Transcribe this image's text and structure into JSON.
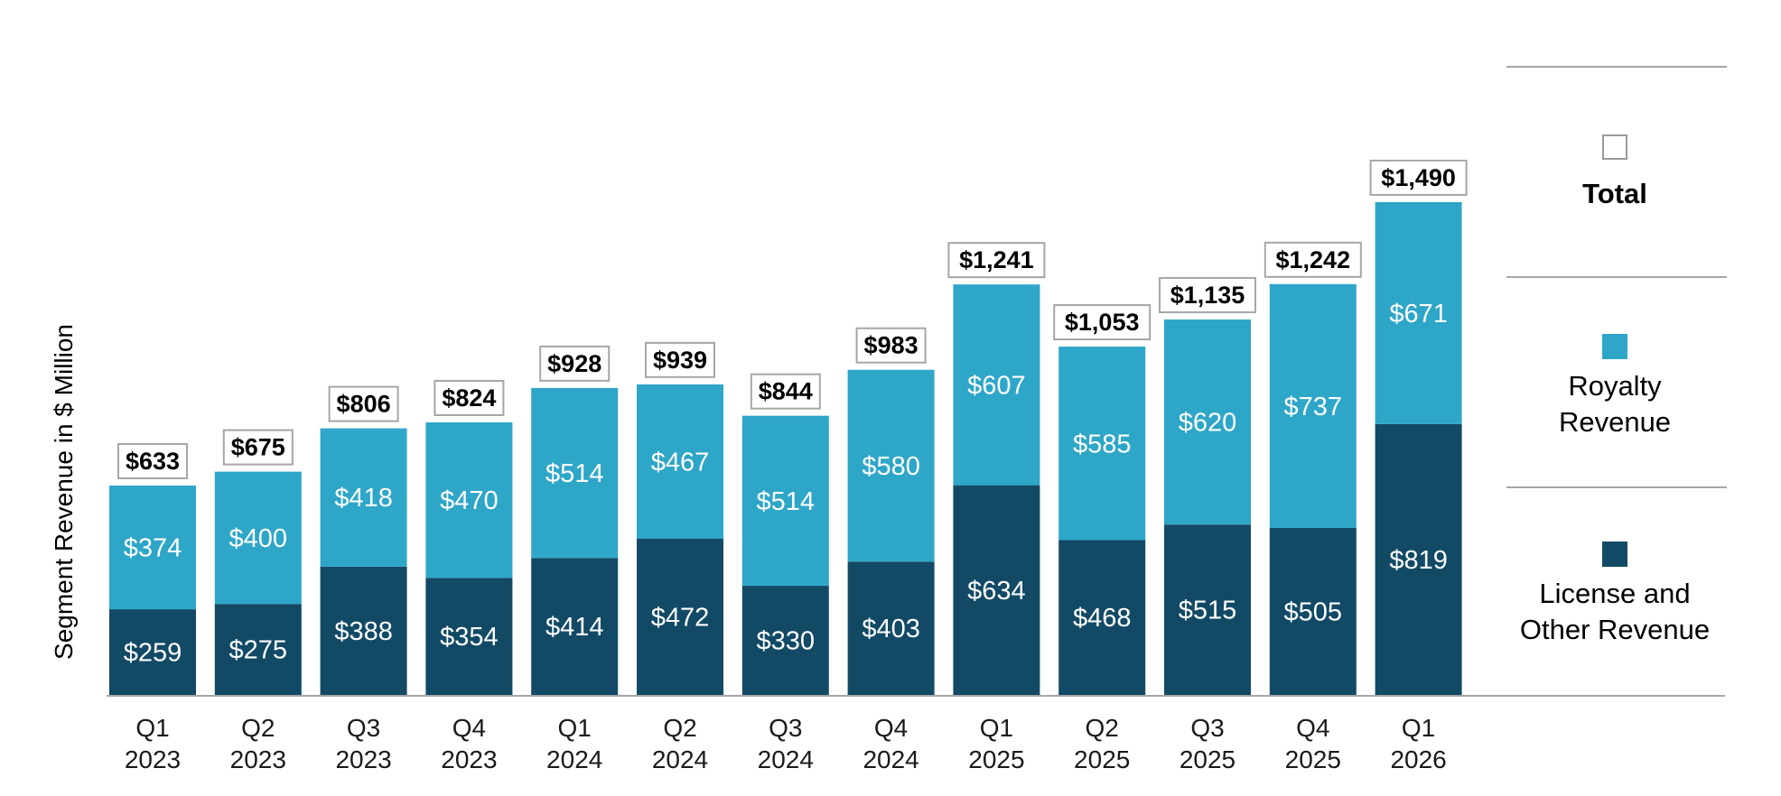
{
  "chart_data": {
    "type": "bar",
    "stacked": true,
    "ylabel": "Segment Revenue in $ Million",
    "categories": [
      [
        "Q1",
        "2023"
      ],
      [
        "Q2",
        "2023"
      ],
      [
        "Q3",
        "2023"
      ],
      [
        "Q4",
        "2023"
      ],
      [
        "Q1",
        "2024"
      ],
      [
        "Q2",
        "2024"
      ],
      [
        "Q3",
        "2024"
      ],
      [
        "Q4",
        "2024"
      ],
      [
        "Q1",
        "2025"
      ],
      [
        "Q2",
        "2025"
      ],
      [
        "Q3",
        "2025"
      ],
      [
        "Q4",
        "2025"
      ],
      [
        "Q1",
        "2026"
      ]
    ],
    "series": [
      {
        "name": "License and Other Revenue",
        "color": "#124a66",
        "values": [
          259,
          275,
          388,
          354,
          414,
          472,
          330,
          403,
          634,
          468,
          515,
          505,
          819
        ],
        "labels": [
          "$259",
          "$275",
          "$388",
          "$354",
          "$414",
          "$472",
          "$330",
          "$403",
          "$634",
          "$468",
          "$515",
          "$505",
          "$819"
        ]
      },
      {
        "name": "Royalty Revenue",
        "color": "#2ea6c8",
        "values": [
          374,
          400,
          418,
          470,
          514,
          467,
          514,
          580,
          607,
          585,
          620,
          737,
          671
        ],
        "labels": [
          "$374",
          "$400",
          "$418",
          "$470",
          "$514",
          "$467",
          "$514",
          "$580",
          "$607",
          "$585",
          "$620",
          "$737",
          "$671"
        ]
      }
    ],
    "totals": {
      "name": "Total",
      "values": [
        633,
        675,
        806,
        824,
        928,
        939,
        844,
        983,
        1241,
        1053,
        1135,
        1242,
        1490
      ],
      "labels": [
        "$633",
        "$675",
        "$806",
        "$824",
        "$928",
        "$939",
        "$844",
        "$983",
        "$1,241",
        "$1,053",
        "$1,135",
        "$1,242",
        "$1,490"
      ]
    },
    "ylim": [
      0,
      1600
    ],
    "grid": false,
    "legend": {
      "placement": "right",
      "items": [
        {
          "lines": [
            "Total"
          ],
          "bold": true,
          "swatch": "outline"
        },
        {
          "lines": [
            "Royalty",
            "Revenue"
          ],
          "bold": false,
          "swatch": "#2ea6c8"
        },
        {
          "lines": [
            "License and",
            "Other Revenue"
          ],
          "bold": false,
          "swatch": "#124a66"
        }
      ]
    }
  }
}
